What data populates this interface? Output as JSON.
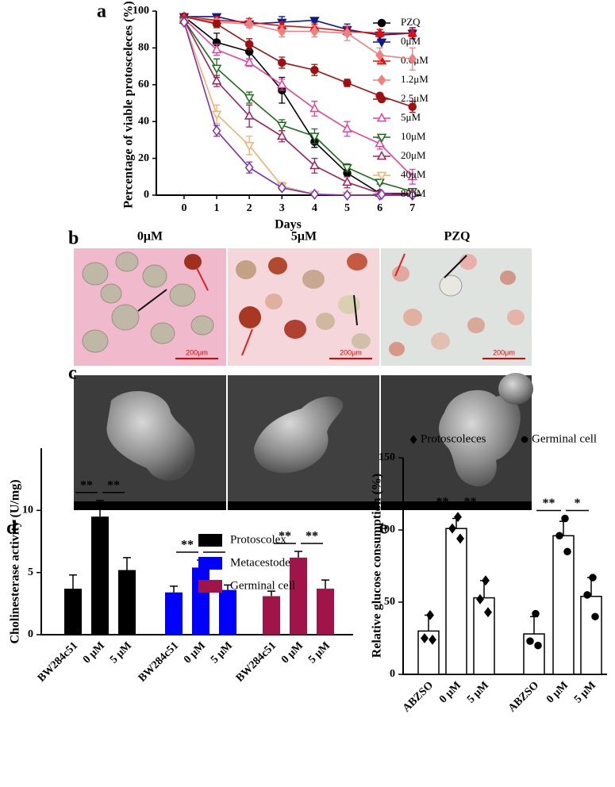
{
  "chart_data": [
    {
      "panel": "a",
      "type": "line",
      "xlabel": "Days",
      "ylabel": "Percentage of viable protosceleces (%)",
      "x": [
        0,
        1,
        2,
        3,
        4,
        5,
        6,
        7
      ],
      "xlim": [
        -0.85,
        7.25
      ],
      "xticks": [
        0,
        1,
        2,
        3,
        4,
        5,
        6,
        7
      ],
      "ylim": [
        0,
        100
      ],
      "yticks": [
        0,
        20,
        40,
        60,
        80,
        100
      ],
      "legend": "right",
      "series": [
        {
          "name": "PZQ",
          "color": "#000000",
          "marker": "circle",
          "filled": true,
          "values": [
            97,
            83,
            78,
            57,
            29,
            12,
            1,
            0.5
          ],
          "errors": [
            1,
            5,
            4,
            7,
            3,
            2,
            1,
            0.5
          ]
        },
        {
          "name": "0μM",
          "color": "#0a1a8c",
          "marker": "triangle-down",
          "filled": true,
          "values": [
            97,
            97,
            93,
            94,
            95,
            90,
            87,
            88
          ],
          "errors": [
            1,
            1,
            2,
            3,
            1,
            3,
            3,
            3
          ]
        },
        {
          "name": "0.6μM",
          "color": "#e01010",
          "marker": "triangle-up",
          "filled": true,
          "values": [
            97,
            95,
            94,
            92,
            91,
            89,
            88,
            88
          ],
          "errors": [
            1,
            2,
            2,
            2,
            2,
            2,
            2,
            2
          ]
        },
        {
          "name": "1.2μM",
          "color": "#f08080",
          "marker": "diamond",
          "filled": true,
          "values": [
            97,
            94,
            93,
            89,
            89,
            88,
            76,
            74
          ],
          "errors": [
            1,
            2,
            2,
            3,
            3,
            4,
            4,
            6
          ]
        },
        {
          "name": "2.5μM",
          "color": "#a01010",
          "marker": "circle",
          "filled": true,
          "values": [
            97,
            93,
            82,
            72,
            68,
            61,
            54,
            48
          ],
          "errors": [
            1,
            2,
            3,
            3,
            3,
            2,
            1,
            3
          ]
        },
        {
          "name": "5μM",
          "color": "#e8409a",
          "marker": "triangle-up",
          "filled": false,
          "values": [
            96,
            79,
            72,
            60,
            47,
            36,
            28,
            10
          ],
          "errors": [
            1,
            3,
            2,
            3,
            4,
            4,
            3,
            4
          ]
        },
        {
          "name": "10μM",
          "color": "#1a6b1a",
          "marker": "triangle-down",
          "filled": false,
          "values": [
            95,
            69,
            53,
            38,
            32,
            15,
            7,
            2
          ],
          "errors": [
            1,
            5,
            3,
            3,
            4,
            2,
            1,
            1
          ]
        },
        {
          "name": "20μM",
          "color": "#a0205a",
          "marker": "triangle-up",
          "filled": false,
          "values": [
            95,
            62,
            43,
            32,
            16,
            7,
            1,
            1
          ],
          "errors": [
            2,
            3,
            6,
            3,
            4,
            3,
            1,
            1
          ]
        },
        {
          "name": "40μM",
          "color": "#f0b070",
          "marker": "triangle-down",
          "filled": false,
          "values": [
            94,
            44,
            27,
            5,
            0.5,
            0,
            0,
            0
          ],
          "errors": [
            1,
            5,
            5,
            2,
            1,
            0.5,
            0.5,
            0.5
          ]
        },
        {
          "name": "80μM",
          "color": "#8030b0",
          "marker": "diamond",
          "filled": false,
          "values": [
            94,
            35,
            15,
            4,
            0.5,
            0,
            0,
            0
          ],
          "errors": [
            1,
            3,
            3,
            1,
            0.5,
            0.5,
            0.5,
            0.5
          ]
        }
      ]
    },
    {
      "panel": "d",
      "type": "bar",
      "ylabel": "Cholinesterase activity (U/mg)",
      "ylim": [
        0,
        15
      ],
      "yticks": [
        0,
        5,
        10
      ],
      "error_direction": "up",
      "legend": "top-right",
      "categories": [
        "BW284c51",
        "0 μM",
        "5 μM"
      ],
      "series": [
        {
          "name": "Protoscolex",
          "color": "#000000",
          "values": [
            3.7,
            9.5,
            5.2
          ],
          "errors": [
            1.1,
            1.3,
            1.0
          ],
          "significance": [
            "**",
            "**"
          ]
        },
        {
          "name": "Metacestode",
          "color": "#0000ff",
          "values": [
            3.4,
            5.4,
            3.6
          ],
          "errors": [
            0.5,
            0.6,
            0.4
          ],
          "significance": [
            "**",
            "**"
          ]
        },
        {
          "name": "Germinal cell",
          "color": "#a0144a",
          "values": [
            3.1,
            6.2,
            3.7
          ],
          "errors": [
            0.4,
            0.5,
            0.7
          ],
          "significance": [
            "**",
            "**"
          ]
        }
      ]
    },
    {
      "panel": "e",
      "type": "bar",
      "ylabel": "Relative glucose consumption (%)",
      "ylim": [
        0,
        150
      ],
      "yticks": [
        0,
        50,
        100,
        150
      ],
      "error_direction": "both",
      "legend": "top",
      "bar_fill": "#ffffff",
      "categories": [
        "ABZSO",
        "0 μM",
        "5 μM"
      ],
      "series": [
        {
          "name": "Protoscoleces",
          "color": "#000000",
          "marker": "diamond",
          "values": [
            30,
            101,
            53
          ],
          "errors": [
            11,
            7,
            12
          ],
          "points": [
            [
              41,
              25,
              24
            ],
            [
              109,
              101,
              94
            ],
            [
              65,
              52,
              43
            ]
          ],
          "significance": [
            "**",
            "**"
          ]
        },
        {
          "name": "Germinal cell",
          "color": "#000000",
          "marker": "circle",
          "values": [
            28,
            96,
            54
          ],
          "errors": [
            12,
            10,
            13
          ],
          "points": [
            [
              42,
              23,
              20
            ],
            [
              108,
              96,
              85
            ],
            [
              67,
              55,
              40
            ]
          ],
          "significance": [
            "**",
            "*"
          ]
        }
      ]
    }
  ],
  "figures": [
    {
      "panel": "b",
      "images": [
        {
          "title": "0μM",
          "scale_bar": "200μm"
        },
        {
          "title": "5μM",
          "scale_bar": "200μm"
        },
        {
          "title": "PZQ",
          "scale_bar": "200μm"
        }
      ]
    },
    {
      "panel": "c"
    }
  ]
}
